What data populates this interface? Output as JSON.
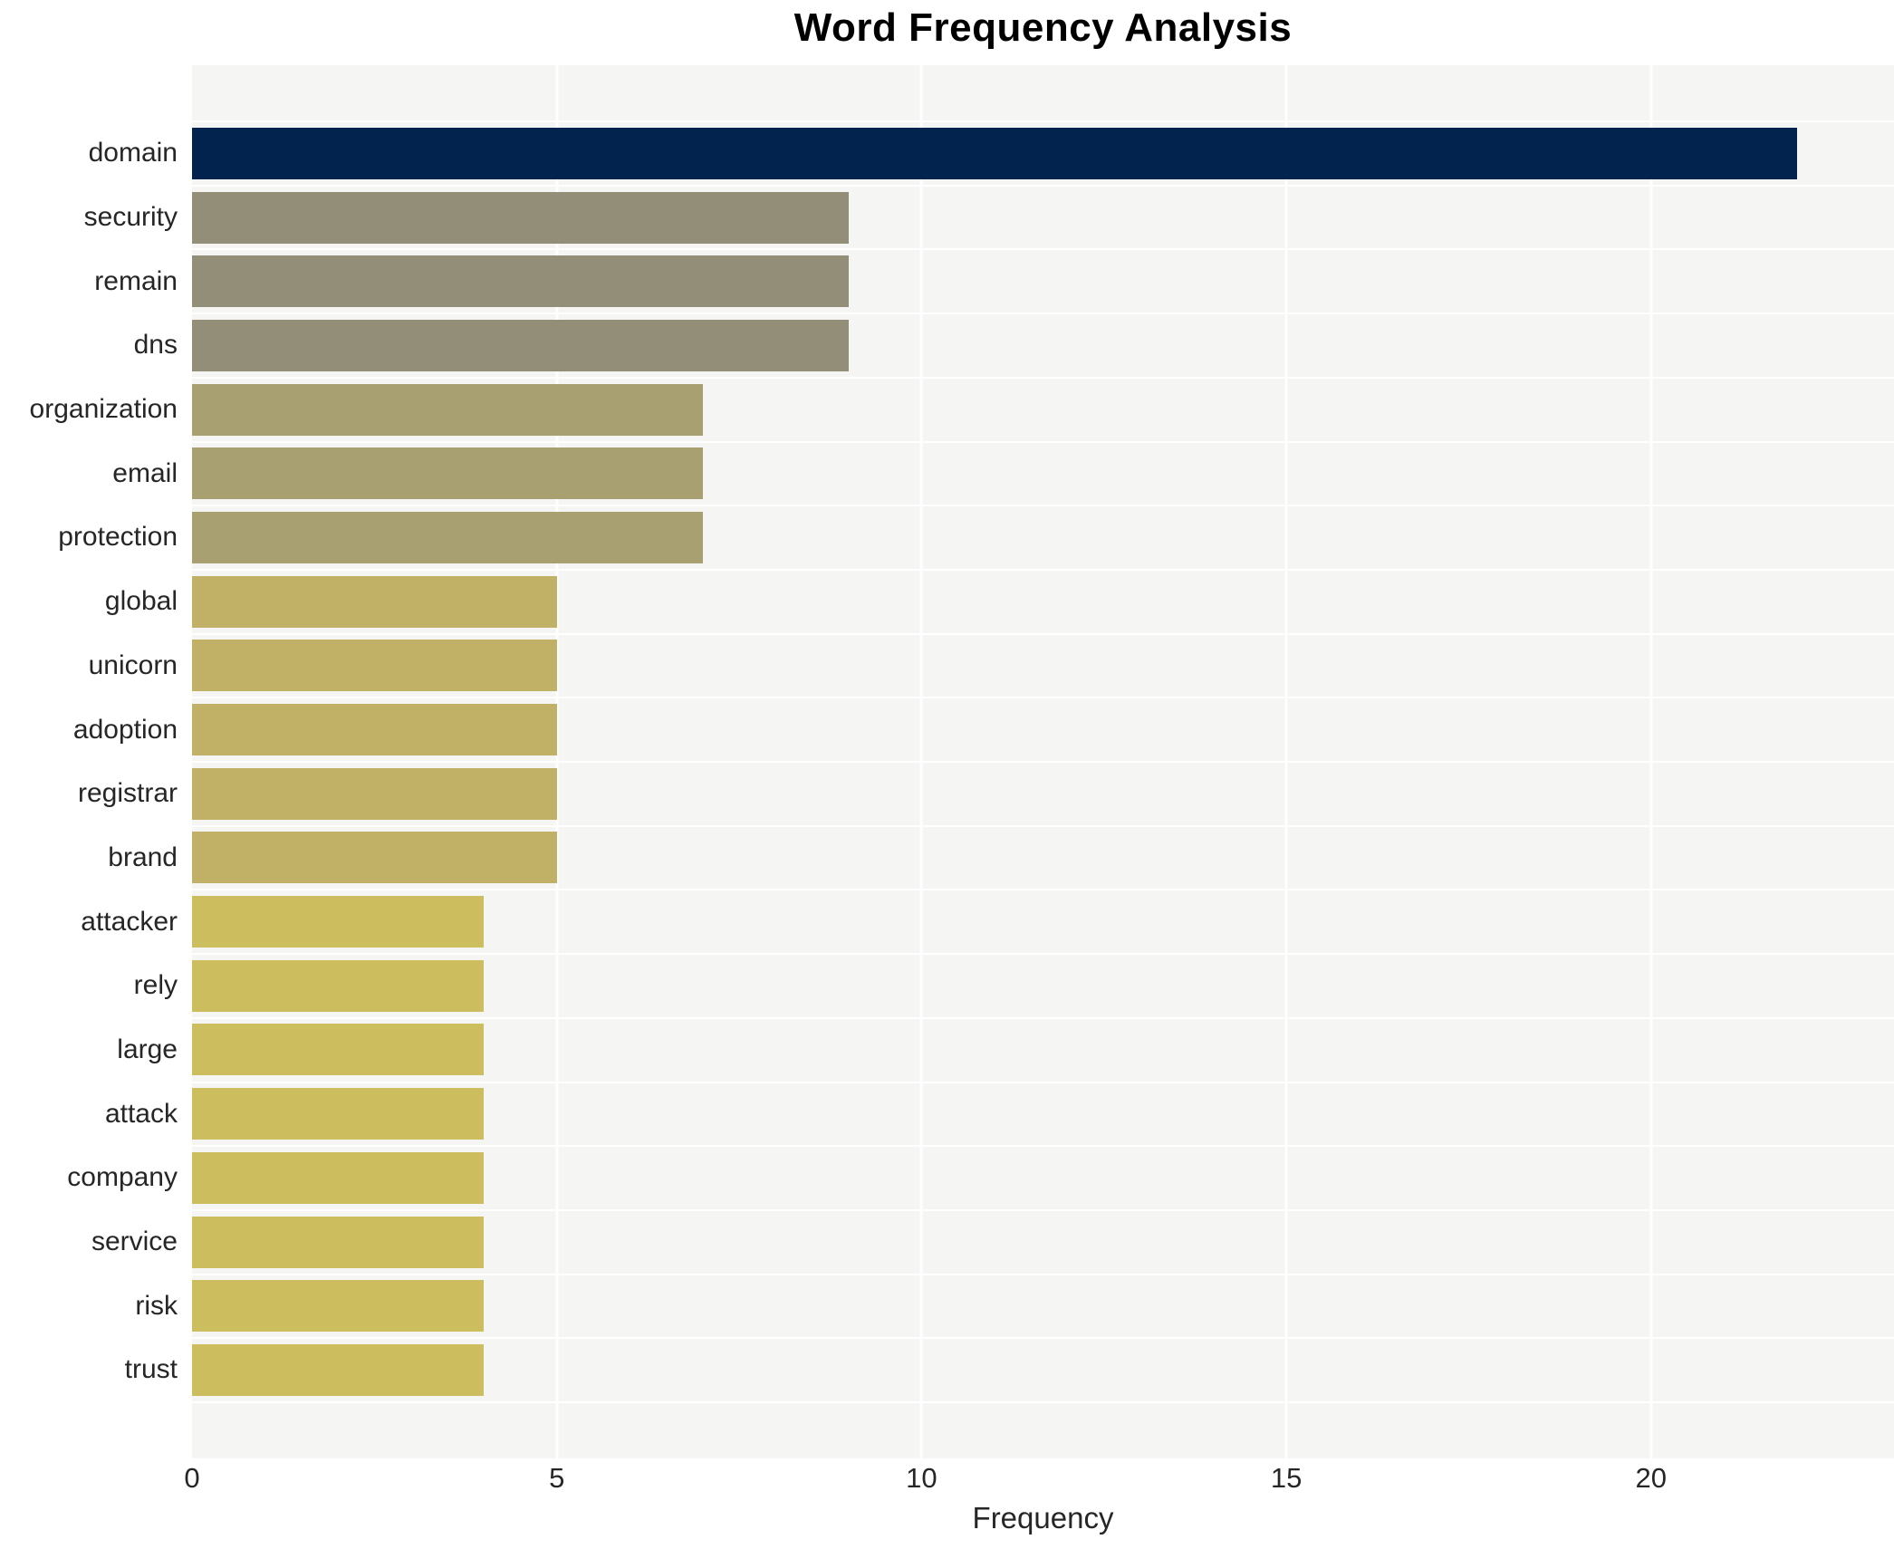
{
  "chart_data": {
    "type": "bar",
    "orientation": "horizontal",
    "title": "Word Frequency Analysis",
    "xlabel": "Frequency",
    "ylabel": "",
    "categories": [
      "domain",
      "security",
      "remain",
      "dns",
      "organization",
      "email",
      "protection",
      "global",
      "unicorn",
      "adoption",
      "registrar",
      "brand",
      "attacker",
      "rely",
      "large",
      "attack",
      "company",
      "service",
      "risk",
      "trust"
    ],
    "values": [
      22,
      9,
      9,
      9,
      7,
      7,
      7,
      5,
      5,
      5,
      5,
      5,
      4,
      4,
      4,
      4,
      4,
      4,
      4,
      4
    ],
    "bar_colors": [
      "#02234d",
      "#938e78",
      "#938e78",
      "#938e78",
      "#a9a071",
      "#a9a071",
      "#a9a071",
      "#c0b166",
      "#c0b166",
      "#c0b166",
      "#c0b166",
      "#c0b166",
      "#ccbd5f",
      "#ccbd5f",
      "#ccbd5f",
      "#ccbd5f",
      "#ccbd5f",
      "#ccbd5f",
      "#ccbd5f",
      "#ccbd5f"
    ],
    "xticks": [
      0,
      5,
      10,
      15,
      20
    ],
    "xlim": [
      0,
      23.33
    ],
    "grid": true,
    "legend": "none",
    "panel_background": "#f5f5f4",
    "gridline_color": "#ffffff",
    "text_color": "#262626",
    "title_color": "#000000"
  }
}
